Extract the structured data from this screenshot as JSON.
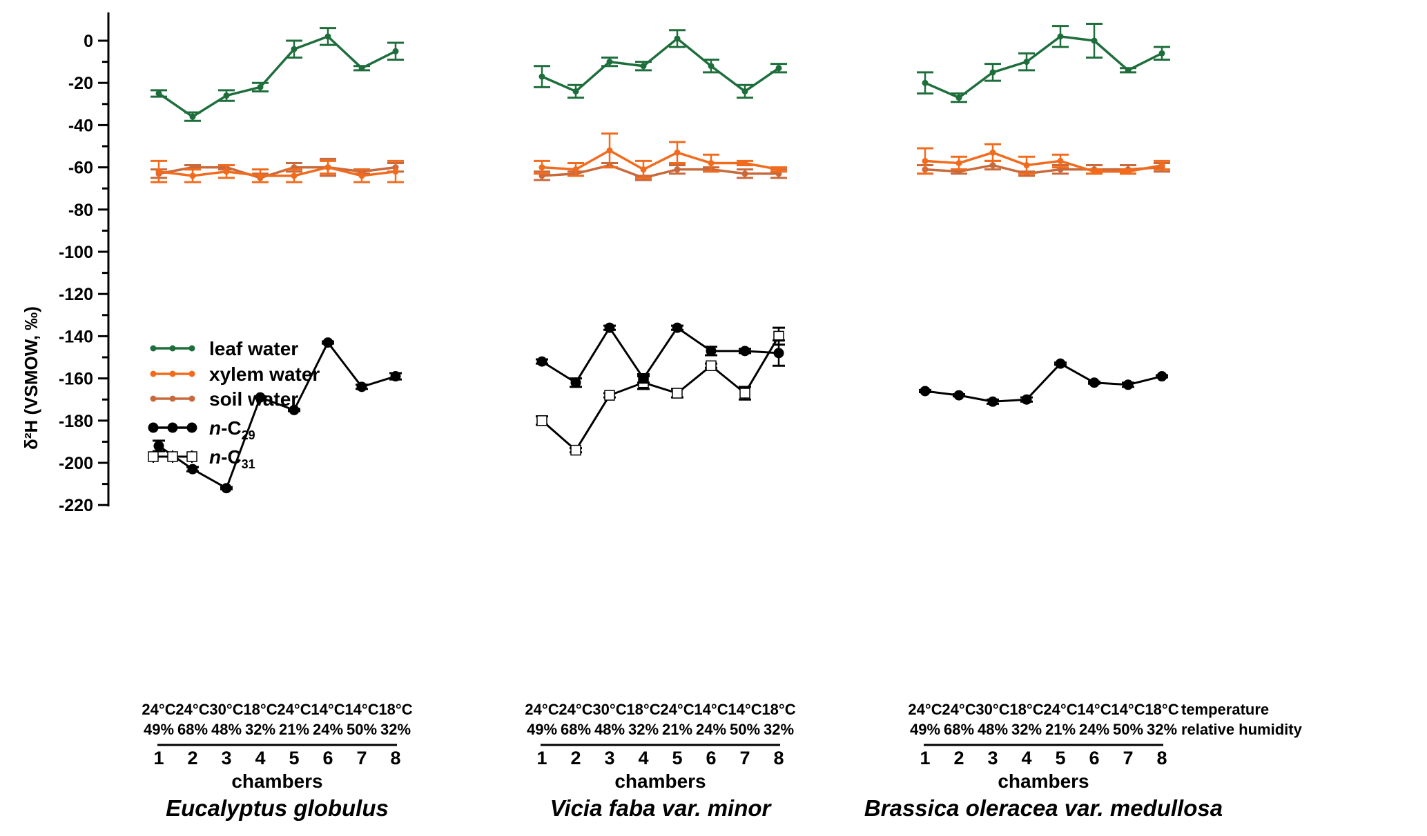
{
  "chart_data": {
    "type": "line",
    "ylabel": "δ²H (VSMOW, ‰)",
    "ylim": [
      -220,
      10
    ],
    "yticks": [
      0,
      -20,
      -40,
      -60,
      -80,
      -100,
      -120,
      -140,
      -160,
      -180,
      -200,
      -220
    ],
    "x": [
      1,
      2,
      3,
      4,
      5,
      6,
      7,
      8
    ],
    "xlabel": "chambers",
    "temperatures": [
      "24°C",
      "24°C",
      "30°C",
      "18°C",
      "24°C",
      "14°C",
      "14°C",
      "18°C"
    ],
    "humidities": [
      "49%",
      "68%",
      "48%",
      "32%",
      "21%",
      "24%",
      "50%",
      "32%"
    ],
    "row_labels": [
      "temperature",
      "relative humidity"
    ],
    "legend": {
      "placement": "left-middle",
      "entries": [
        {
          "key": "leaf",
          "label": "leaf water",
          "color": "#1e6e3c"
        },
        {
          "key": "xylem",
          "label": "xylem water",
          "color": "#f26b1d"
        },
        {
          "key": "soil",
          "label": "soil water",
          "color": "#c8693c"
        },
        {
          "key": "c29",
          "label_prefix": "n",
          "label_main": "-C",
          "label_sub": "29",
          "color": "#000000"
        },
        {
          "key": "c31",
          "label_prefix": "n",
          "label_main": "-C",
          "label_sub": "31",
          "color": "#000000"
        }
      ]
    },
    "panels": [
      {
        "species": "Eucalyptus globulus",
        "series": [
          {
            "key": "leaf",
            "values": [
              -25,
              -36,
              -26,
              -22,
              -4,
              2,
              -13,
              -5
            ],
            "err": [
              1.5,
              2,
              2.5,
              2,
              4,
              4,
              1,
              4
            ]
          },
          {
            "key": "xylem",
            "values": [
              -62,
              -64,
              -62,
              -64,
              -64,
              -60,
              -64,
              -62
            ],
            "err": [
              5,
              3,
              3,
              3,
              3,
              3,
              3,
              5
            ]
          },
          {
            "key": "soil",
            "values": [
              -63,
              -60,
              -60,
              -65,
              -60,
              -60,
              -62,
              -60
            ],
            "err": [
              2,
              1,
              1,
              2,
              2,
              4,
              1,
              2
            ]
          },
          {
            "key": "c29",
            "values": [
              -192,
              -203,
              -212,
              -169,
              -175,
              -143,
              -164,
              -159
            ],
            "err": [
              2.5,
              1,
              0.5,
              0.5,
              0.5,
              0.5,
              1,
              1.5
            ]
          }
        ]
      },
      {
        "species": "Vicia faba var. minor",
        "series": [
          {
            "key": "leaf",
            "values": [
              -17,
              -24,
              -10,
              -12,
              1,
              -12,
              -24,
              -13
            ],
            "err": [
              5,
              3,
              2,
              2,
              4,
              3,
              3,
              2
            ]
          },
          {
            "key": "xylem",
            "values": [
              -60,
              -61,
              -52,
              -61,
              -53,
              -58,
              -58,
              -61
            ],
            "err": [
              3,
              3,
              8,
              4,
              5,
              4,
              1,
              1
            ]
          },
          {
            "key": "soil",
            "values": [
              -64,
              -63,
              -59,
              -65,
              -61,
              -61,
              -63,
              -63
            ],
            "err": [
              2,
              1,
              1,
              1,
              2,
              1,
              2,
              2
            ]
          },
          {
            "key": "c29",
            "values": [
              -152,
              -162,
              -136,
              -160,
              -136,
              -147,
              -147,
              -148
            ],
            "err": [
              1,
              2,
              1,
              2,
              1,
              2,
              1,
              6
            ]
          },
          {
            "key": "c31",
            "values": [
              -180,
              -194,
              -168,
              -162,
              -167,
              -154,
              -167,
              -140
            ],
            "err": [
              2,
              1,
              1,
              3,
              2,
              1,
              3,
              4
            ]
          }
        ]
      },
      {
        "species": "Brassica oleracea var. medullosa",
        "series": [
          {
            "key": "leaf",
            "values": [
              -20,
              -27,
              -15,
              -10,
              2,
              0,
              -14,
              -6
            ],
            "err": [
              5,
              2,
              4,
              4,
              5,
              8,
              1,
              3
            ]
          },
          {
            "key": "xylem",
            "values": [
              -57,
              -58,
              -53,
              -59,
              -57,
              -62,
              -62,
              -59
            ],
            "err": [
              6,
              3,
              4,
              4,
              3,
              1,
              1,
              2
            ]
          },
          {
            "key": "soil",
            "values": [
              -61,
              -62,
              -59,
              -63,
              -61,
              -61,
              -61,
              -60
            ],
            "err": [
              2,
              1,
              2,
              1,
              2,
              2,
              2,
              2
            ]
          },
          {
            "key": "c29",
            "values": [
              -166,
              -168,
              -171,
              -170,
              -153,
              -162,
              -163,
              -159
            ],
            "err": [
              0.5,
              0.5,
              1,
              1,
              0.5,
              0.5,
              1,
              0.5
            ]
          }
        ]
      }
    ]
  }
}
